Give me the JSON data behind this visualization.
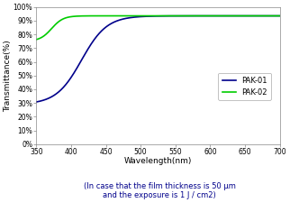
{
  "title": "",
  "xlabel": "Wavelength(nm)",
  "ylabel": "Transmittance(%)",
  "caption_line1": "(In case that the film thickness is 50 μm",
  "caption_line2": "and the exposure is 1 J / cm2)",
  "xlim": [
    350,
    700
  ],
  "ylim": [
    0,
    100
  ],
  "xticks": [
    350,
    400,
    450,
    500,
    550,
    600,
    650,
    700
  ],
  "yticks": [
    0,
    10,
    20,
    30,
    40,
    50,
    60,
    70,
    80,
    90,
    100
  ],
  "pak01_color": "#00008B",
  "pak02_color": "#00CC00",
  "legend_labels": [
    "PAK-01",
    "PAK-02"
  ],
  "background_color": "#ffffff",
  "caption_color": "#00008B"
}
